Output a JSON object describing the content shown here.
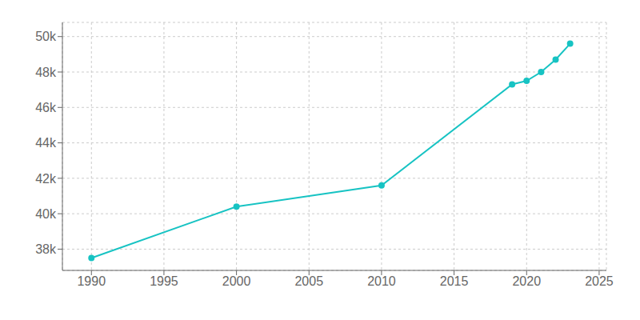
{
  "chart_data": {
    "type": "line",
    "x": [
      1990,
      2000,
      2010,
      2019,
      2020,
      2021,
      2022,
      2023
    ],
    "values": [
      37500,
      40400,
      41600,
      47300,
      47500,
      48000,
      48700,
      49600
    ],
    "color": "#17C3C3",
    "marker": "o",
    "xlim": [
      1988,
      2025.5
    ],
    "ylim": [
      36800,
      50800
    ],
    "xticks": [
      1990,
      1995,
      2000,
      2005,
      2010,
      2015,
      2020,
      2025
    ],
    "yticks": [
      {
        "value": 38000,
        "label": "38k"
      },
      {
        "value": 40000,
        "label": "40k"
      },
      {
        "value": 42000,
        "label": "42k"
      },
      {
        "value": 44000,
        "label": "44k"
      },
      {
        "value": 46000,
        "label": "46k"
      },
      {
        "value": 48000,
        "label": "48k"
      },
      {
        "value": 50000,
        "label": "50k"
      }
    ],
    "grid": true
  }
}
